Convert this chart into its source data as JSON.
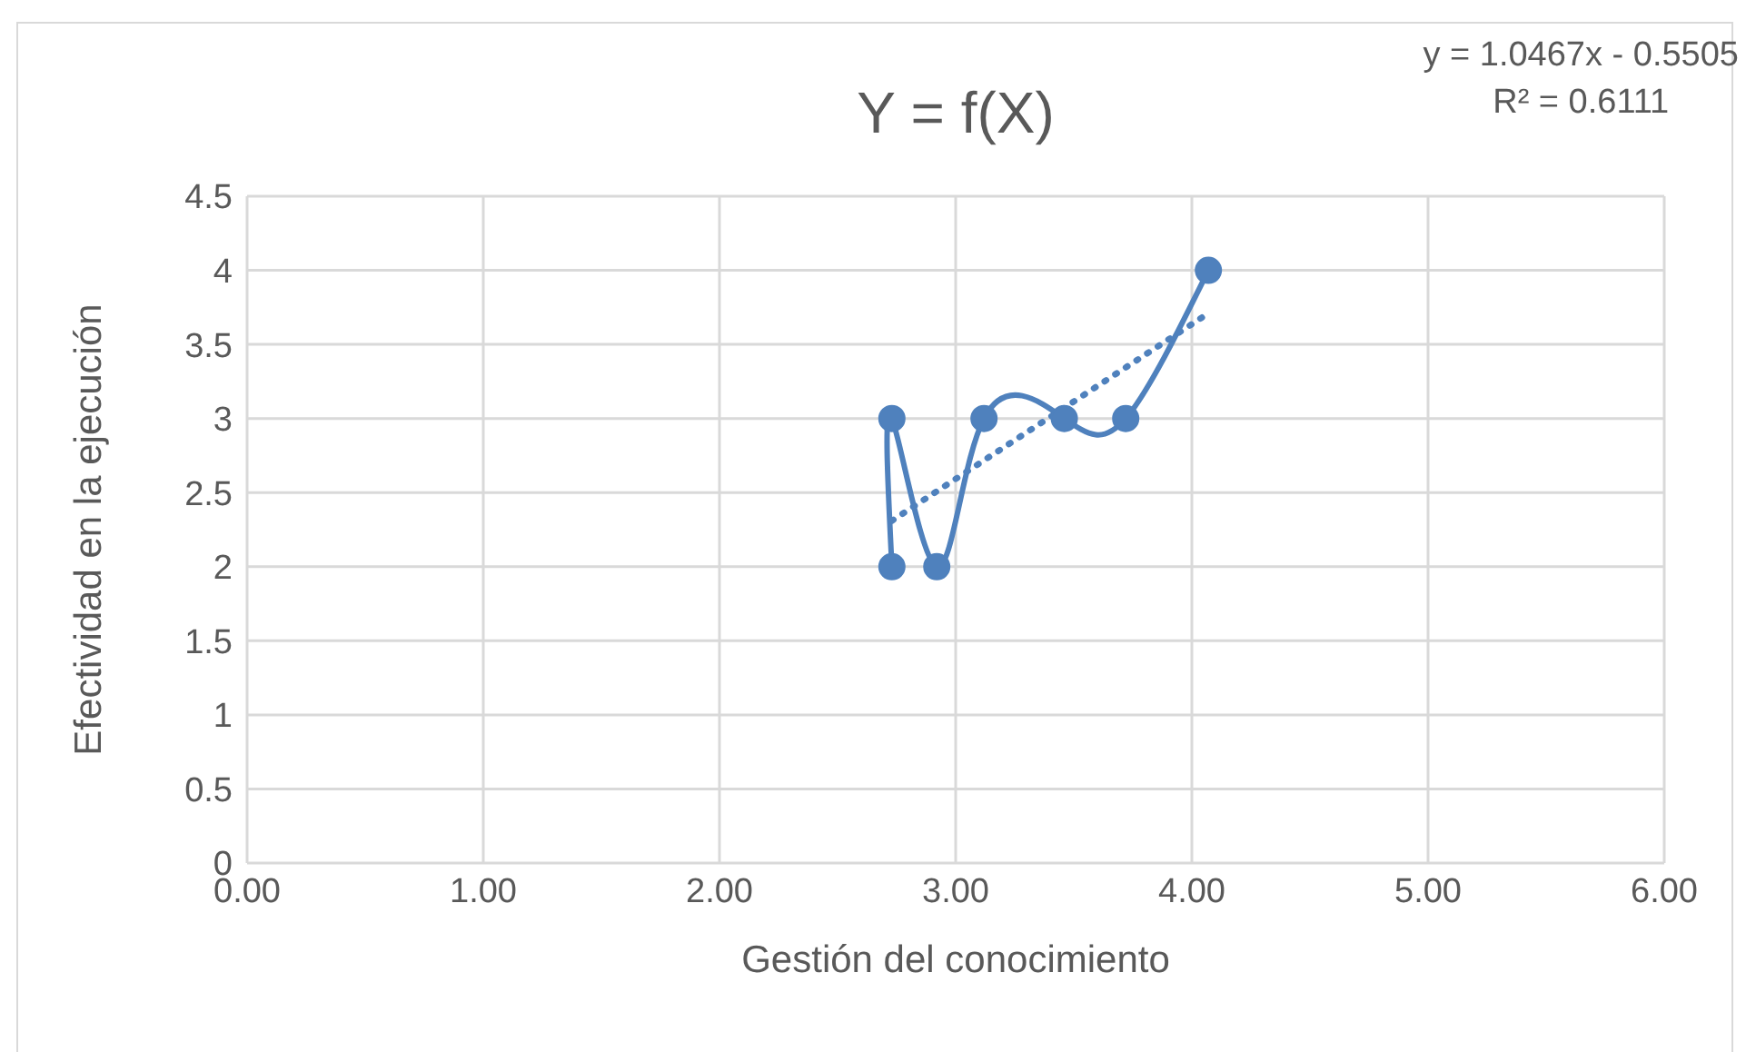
{
  "chart_data": {
    "type": "line",
    "title": "Y = f(X)",
    "xlabel": "Gestión del conocimiento",
    "ylabel": "Efectividad en la ejecución",
    "annotations": [
      "y = 1.0467x - 0.5505",
      "R² = 0.6111"
    ],
    "series": [
      {
        "color": "#4f81bd",
        "x": [
          2.73,
          2.73,
          2.92,
          3.12,
          3.46,
          3.72,
          4.07
        ],
        "values": [
          2,
          3,
          2,
          3,
          3,
          3,
          4
        ],
        "marker": "circle",
        "line_style": "solid"
      },
      {
        "color": "#4f81bd",
        "x": [
          2.73,
          4.07
        ],
        "values": [
          2.31,
          3.71
        ],
        "marker": "none",
        "line_style": "dotted"
      }
    ],
    "xlim": [
      0,
      6
    ],
    "xticks": [
      {
        "value": 0,
        "label": "0.00"
      },
      {
        "value": 1,
        "label": "1.00"
      },
      {
        "value": 2,
        "label": "2.00"
      },
      {
        "value": 3,
        "label": "3.00"
      },
      {
        "value": 4,
        "label": "4.00"
      },
      {
        "value": 5,
        "label": "5.00"
      },
      {
        "value": 6,
        "label": "6.00"
      }
    ],
    "ylim": [
      0,
      4.5
    ],
    "yticks": [
      0,
      0.5,
      1,
      1.5,
      2,
      2.5,
      3,
      3.5,
      4,
      4.5
    ],
    "grid": true
  }
}
